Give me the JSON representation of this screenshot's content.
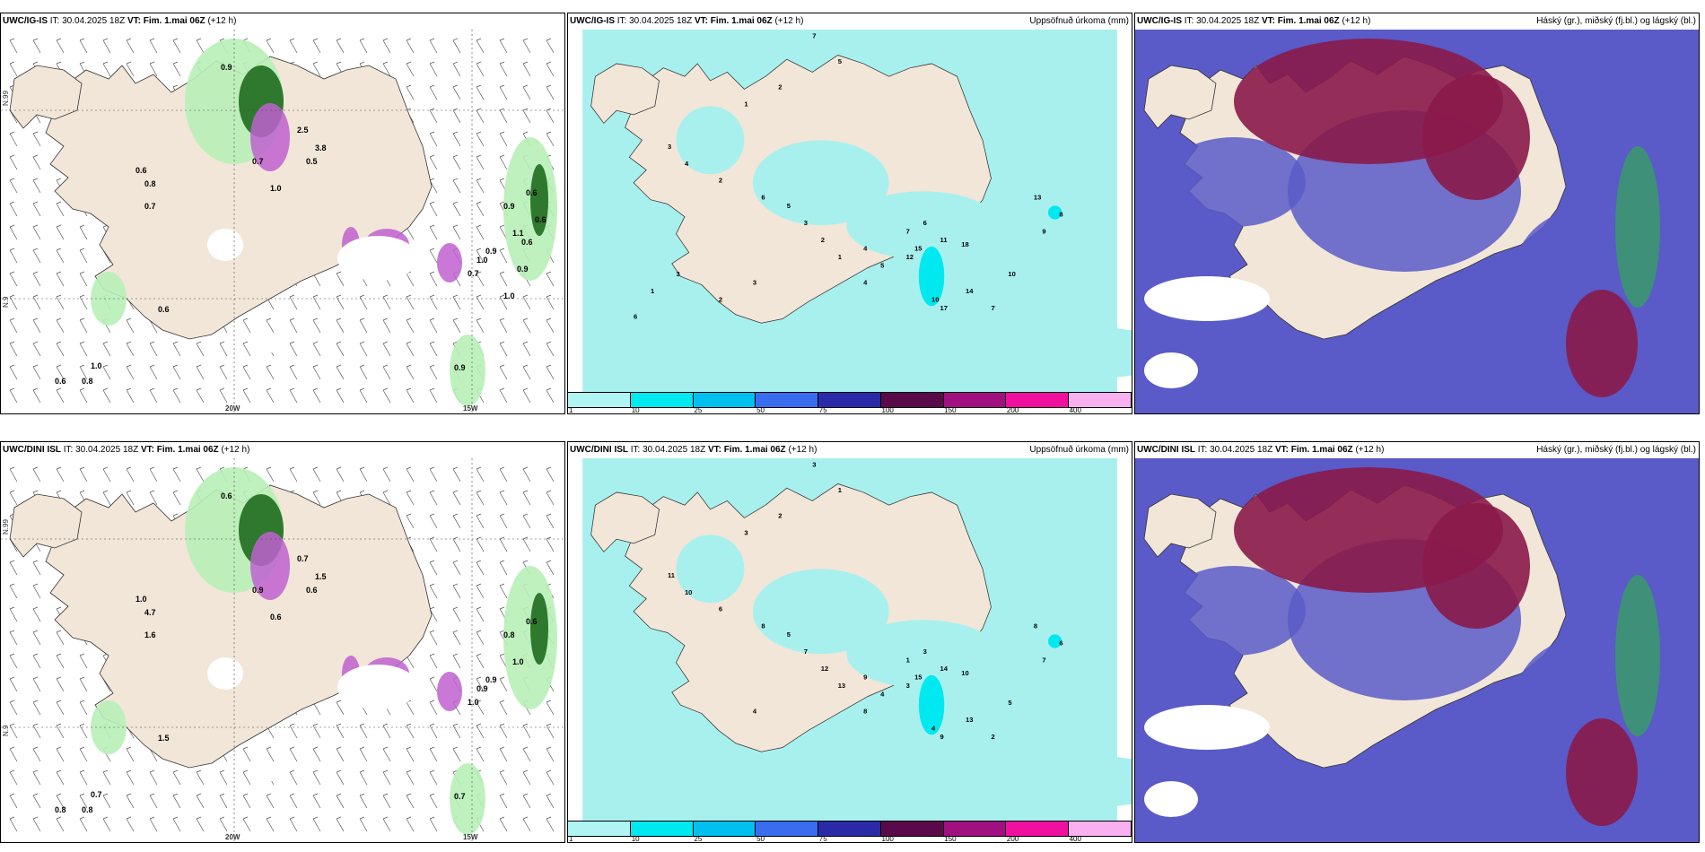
{
  "colors": {
    "land": "#f2e6d8",
    "sea": "#ffffff",
    "precip_light": "#a8f0ee",
    "precip_med": "#00e8f0",
    "green_light": "#b8f0b8",
    "green_dark": "#1e6b1e",
    "purple": "#c060d0",
    "cloud_blue": "#5a5ac8",
    "cloud_red": "#8a1a4a"
  },
  "rows": [
    {
      "model": "UWC/IG-IS",
      "it_label": "IT:",
      "it_value": "30.04.2025 18Z",
      "vt_label": "VT:",
      "vt_value": "Fim. 1.mai 06Z",
      "lead": "(+12 h)",
      "panel_wind_ticks": {
        "x1": "20W",
        "x2": "15W",
        "y1": "N.99",
        "y2": "N.9"
      },
      "panel_precip_title": "Uppsöfnuð úrkoma (mm)",
      "panel_cloud_title": "Háský (gr.), miðský (fj.bl.) og lágský (bl.)",
      "wind_values": [
        "0.6",
        "0.8",
        "1.0",
        "0.6",
        "0.8",
        "0.7",
        "0.6",
        "0.9",
        "0.9",
        "0.7",
        "1.0",
        "2.5",
        "3.8",
        "0.5",
        "0.9",
        "1.1",
        "1.0",
        "0.6",
        "0.7",
        "0.9",
        "0.6",
        "0.6",
        "1.0",
        "0.9"
      ],
      "precip_values": [
        "7",
        "5",
        "2",
        "1",
        "3",
        "4",
        "2",
        "6",
        "5",
        "3",
        "2",
        "1",
        "4",
        "5",
        "7",
        "6",
        "11",
        "15",
        "18",
        "13",
        "8",
        "9",
        "10",
        "10",
        "7",
        "12",
        "14",
        "17",
        "4",
        "3",
        "2",
        "1",
        "6",
        "3"
      ]
    },
    {
      "model": "UWC/DINI ISL",
      "it_label": "IT:",
      "it_value": "30.04.2025 18Z",
      "vt_label": "VT:",
      "vt_value": "Fim. 1.mai 06Z",
      "lead": "(+12 h)",
      "panel_wind_ticks": {
        "x1": "20W",
        "x2": "15W",
        "y1": "N.99",
        "y2": "N.9"
      },
      "panel_precip_title": "Uppsöfnuð úrkoma (mm)",
      "panel_cloud_title": "Háský (gr.), miðský (fj.bl.) og lágský (bl.)",
      "wind_values": [
        "0.8",
        "0.8",
        "0.7",
        "1.0",
        "4.7",
        "1.6",
        "1.5",
        "0.7",
        "0.6",
        "0.9",
        "0.6",
        "0.7",
        "1.5",
        "0.6",
        "0.8",
        "1.0",
        "0.9",
        "0.6",
        "1.0",
        "0.9"
      ],
      "precip_values": [
        "3",
        "1",
        "2",
        "3",
        "11",
        "10",
        "6",
        "8",
        "5",
        "7",
        "12",
        "13",
        "9",
        "4",
        "1",
        "3",
        "14",
        "15",
        "10",
        "8",
        "6",
        "7",
        "5",
        "4",
        "2",
        "3",
        "13",
        "9",
        "8",
        "4"
      ]
    }
  ],
  "colorbar": [
    "1",
    "10",
    "25",
    "50",
    "75",
    "100",
    "150",
    "200",
    "400"
  ]
}
